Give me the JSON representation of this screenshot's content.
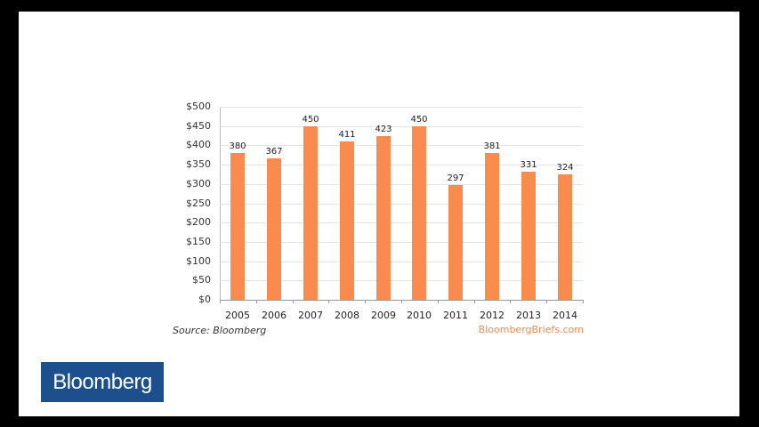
{
  "frame": {
    "background": "#000000",
    "panel_background": "#ffffff"
  },
  "chart_data": {
    "type": "bar",
    "title": "",
    "xlabel": "",
    "ylabel": "",
    "categories": [
      "2005",
      "2006",
      "2007",
      "2008",
      "2009",
      "2010",
      "2011",
      "2012",
      "2013",
      "2014"
    ],
    "values": [
      380,
      367,
      450,
      411,
      423,
      450,
      297,
      381,
      331,
      324
    ],
    "value_labels": [
      "380",
      "367",
      "450",
      "411",
      "423",
      "450",
      "297",
      "381",
      "331",
      "324"
    ],
    "ylim": [
      0,
      500
    ],
    "y_ticks": [
      "$0",
      "$50",
      "$100",
      "$150",
      "$200",
      "$250",
      "$300",
      "$350",
      "$400",
      "$450",
      "$500"
    ],
    "y_tick_values": [
      0,
      50,
      100,
      150,
      200,
      250,
      300,
      350,
      400,
      450,
      500
    ],
    "grid": true,
    "legend": null,
    "bar_color": "#f98b4f"
  },
  "footer": {
    "source": "Source: Bloomberg",
    "site": "BloombergBriefs.com",
    "site_color": "#f58a4b"
  },
  "logo": {
    "text": "Bloomberg",
    "background": "#1c4f8c"
  }
}
